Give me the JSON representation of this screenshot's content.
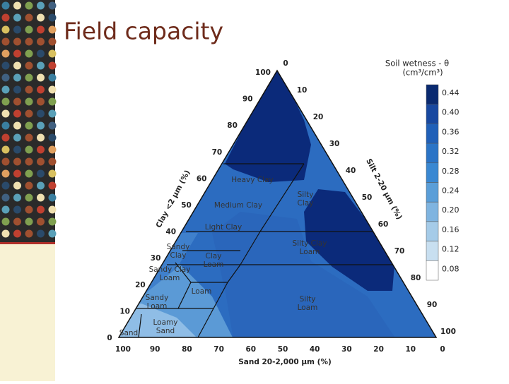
{
  "title": "Field capacity",
  "diagram": {
    "clay_axis": {
      "title": "Clay <2 μm (%)",
      "ticks": [
        100,
        90,
        80,
        70,
        60,
        50,
        40,
        30,
        20,
        10,
        0
      ]
    },
    "silt_axis": {
      "title": "Silt 2-20 μm (%)",
      "ticks": [
        0,
        10,
        20,
        30,
        40,
        50,
        60,
        70,
        80,
        90,
        100
      ]
    },
    "sand_axis": {
      "title": "Sand 20-2,000 μm (%)",
      "ticks": [
        100,
        90,
        80,
        70,
        60,
        50,
        40,
        30,
        20,
        10,
        0
      ]
    },
    "legend": {
      "title": "Soil wetness - θ",
      "unit": "(cm³/cm³)",
      "ticks": [
        "0.44",
        "0.40",
        "0.36",
        "0.32",
        "0.28",
        "0.24",
        "0.20",
        "0.16",
        "0.12",
        "0.08"
      ]
    },
    "classes": [
      {
        "lines": [
          "Heavy Clay"
        ]
      },
      {
        "lines": [
          "Medium Clay"
        ]
      },
      {
        "lines": [
          "Light Clay"
        ]
      },
      {
        "lines": [
          "Sandy",
          "Clay"
        ]
      },
      {
        "lines": [
          "Clay",
          "Loam"
        ]
      },
      {
        "lines": [
          "Silty",
          "Clay"
        ]
      },
      {
        "lines": [
          "Silty Clay",
          "Loam"
        ]
      },
      {
        "lines": [
          "Sandy Clay",
          "Loam"
        ]
      },
      {
        "lines": [
          "Loam"
        ]
      },
      {
        "lines": [
          "Sandy",
          "Loam"
        ]
      },
      {
        "lines": [
          "Silty",
          "Loam"
        ]
      },
      {
        "lines": [
          "Loamy",
          "Sand"
        ]
      },
      {
        "lines": [
          "Sand"
        ]
      }
    ]
  }
}
